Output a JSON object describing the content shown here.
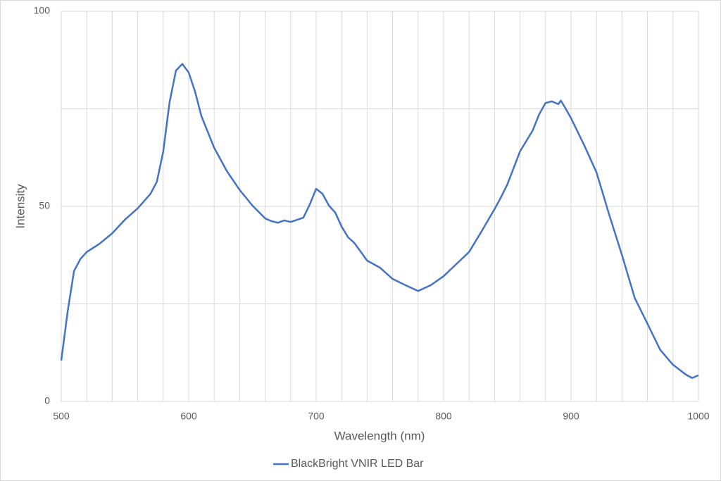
{
  "chart_data": {
    "type": "line",
    "x_label": "Wavelength (nm)",
    "y_label": "Intensity",
    "x": [
      500,
      505,
      510,
      515,
      520,
      530,
      540,
      550,
      560,
      570,
      575,
      580,
      585,
      590,
      595,
      600,
      605,
      610,
      620,
      630,
      640,
      650,
      660,
      665,
      670,
      675,
      680,
      690,
      695,
      700,
      705,
      710,
      715,
      720,
      725,
      730,
      740,
      750,
      760,
      770,
      780,
      790,
      800,
      810,
      820,
      830,
      840,
      845,
      850,
      860,
      870,
      875,
      880,
      885,
      890,
      892,
      895,
      900,
      910,
      920,
      930,
      940,
      950,
      960,
      970,
      980,
      990,
      995,
      1000
    ],
    "series": [
      {
        "name": "BlackBright VNIR LED Bar",
        "color": "#4472c4",
        "values": [
          10.5,
          23,
          33.4,
          36.5,
          38.3,
          40.4,
          43.1,
          46.6,
          49.5,
          53.2,
          56.3,
          64,
          76.7,
          84.8,
          86.5,
          84.3,
          79.4,
          73.1,
          65,
          59,
          54.2,
          50.2,
          46.9,
          46.2,
          45.8,
          46.4,
          46.0,
          47.1,
          50.5,
          54.5,
          53.2,
          50.2,
          48.4,
          44.8,
          42.1,
          40.6,
          36.1,
          34.3,
          31.4,
          29.8,
          28.3,
          29.8,
          32.1,
          35.2,
          38.3,
          43.7,
          49.3,
          52.3,
          55.6,
          64.1,
          69.5,
          73.6,
          76.5,
          76.9,
          76.2,
          77.1,
          75.5,
          72.6,
          65.9,
          58.7,
          47.8,
          37.5,
          26.5,
          19.9,
          13.2,
          9.4,
          6.9,
          6.0,
          6.7
        ]
      }
    ],
    "xlim": [
      500,
      1000
    ],
    "xticks": [
      500,
      600,
      700,
      800,
      900,
      1000
    ],
    "x_grid": [
      500,
      520,
      540,
      560,
      580,
      600,
      620,
      640,
      660,
      680,
      700,
      720,
      740,
      760,
      780,
      800,
      820,
      840,
      860,
      880,
      900,
      920,
      940,
      960,
      980,
      1000
    ],
    "ylim": [
      0,
      100
    ],
    "yticks": [
      0,
      50,
      100
    ],
    "y_grid": [
      0,
      25,
      50,
      75,
      100
    ],
    "grid": true,
    "legend": "bottom"
  }
}
